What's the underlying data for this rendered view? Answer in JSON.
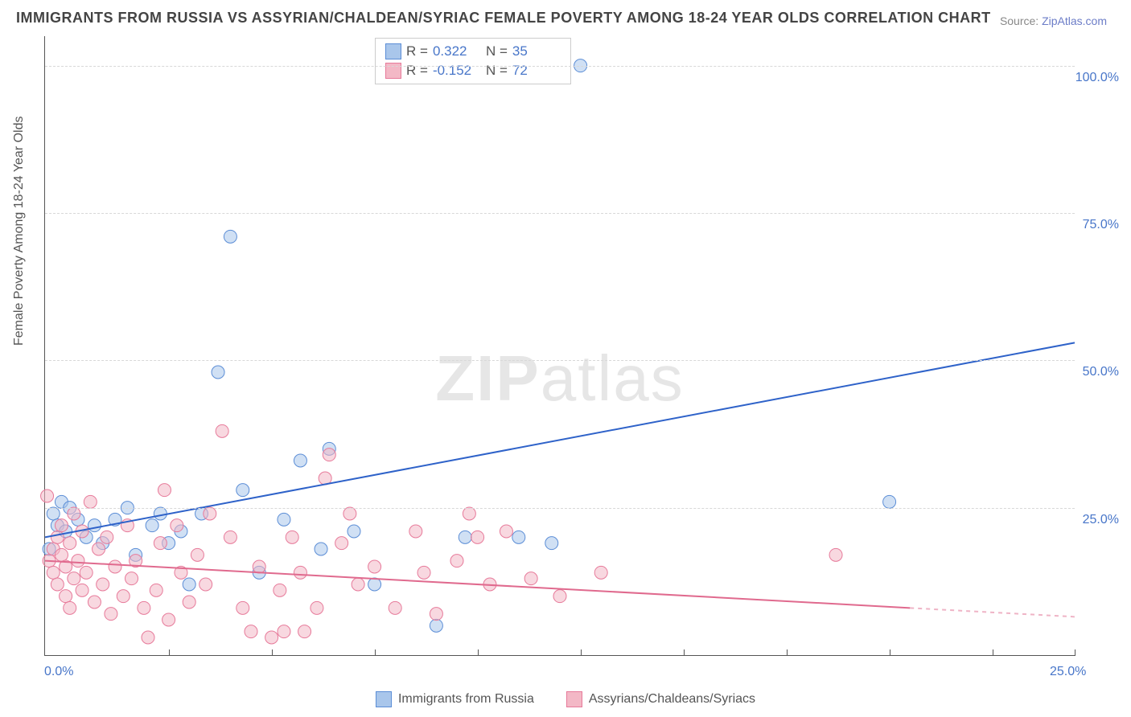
{
  "title": "IMMIGRANTS FROM RUSSIA VS ASSYRIAN/CHALDEAN/SYRIAC FEMALE POVERTY AMONG 18-24 YEAR OLDS CORRELATION CHART",
  "source_label": "Source: ",
  "source_link": "ZipAtlas.com",
  "watermark_a": "ZIP",
  "watermark_b": "atlas",
  "ylabel": "Female Poverty Among 18-24 Year Olds",
  "chart": {
    "type": "scatter-with-regression",
    "xlim": [
      0,
      25
    ],
    "ylim": [
      0,
      105
    ],
    "y_ticks": [
      25,
      50,
      75,
      100
    ],
    "y_tick_labels": [
      "25.0%",
      "50.0%",
      "75.0%",
      "100.0%"
    ],
    "x_origin_label": "0.0%",
    "x_max_label": "25.0%",
    "x_tick_positions": [
      3,
      5.5,
      8,
      10.5,
      13,
      15.5,
      18,
      20.5,
      23,
      25
    ],
    "grid_color": "#d8d8d8",
    "background_color": "#ffffff",
    "axis_color": "#555555",
    "marker_radius": 8,
    "marker_opacity": 0.55,
    "series": [
      {
        "name": "Immigrants from Russia",
        "color_fill": "#a9c6eb",
        "color_stroke": "#5b8dd6",
        "r_label": "R =",
        "r_value": "0.322",
        "n_label": "N =",
        "n_value": "35",
        "regression": {
          "x1": 0,
          "y1": 20,
          "x2": 25,
          "y2": 53,
          "color": "#2e62c9",
          "width": 2
        },
        "points": [
          [
            0.2,
            24
          ],
          [
            0.3,
            22
          ],
          [
            0.4,
            26
          ],
          [
            0.5,
            21
          ],
          [
            0.6,
            25
          ],
          [
            0.8,
            23
          ],
          [
            1.0,
            20
          ],
          [
            1.2,
            22
          ],
          [
            1.4,
            19
          ],
          [
            1.7,
            23
          ],
          [
            2.0,
            25
          ],
          [
            2.2,
            17
          ],
          [
            2.6,
            22
          ],
          [
            2.8,
            24
          ],
          [
            3.0,
            19
          ],
          [
            3.3,
            21
          ],
          [
            3.5,
            12
          ],
          [
            3.8,
            24
          ],
          [
            4.2,
            48
          ],
          [
            4.5,
            71
          ],
          [
            4.8,
            28
          ],
          [
            5.2,
            14
          ],
          [
            5.8,
            23
          ],
          [
            6.2,
            33
          ],
          [
            6.7,
            18
          ],
          [
            6.9,
            35
          ],
          [
            7.5,
            21
          ],
          [
            8.0,
            12
          ],
          [
            9.5,
            5
          ],
          [
            10.2,
            20
          ],
          [
            11.5,
            20
          ],
          [
            12.3,
            19
          ],
          [
            13.0,
            100
          ],
          [
            20.5,
            26
          ],
          [
            0.1,
            18
          ]
        ]
      },
      {
        "name": "Assyrians/Chaldeans/Syriacs",
        "color_fill": "#f3b8c6",
        "color_stroke": "#e77a9a",
        "r_label": "R =",
        "r_value": "-0.152",
        "n_label": "N =",
        "n_value": "72",
        "regression": {
          "x1": 0,
          "y1": 16,
          "x2": 21,
          "y2": 8,
          "extend_x2": 25,
          "extend_y2": 6.5,
          "color": "#e06a8e",
          "width": 2
        },
        "points": [
          [
            0.1,
            16
          ],
          [
            0.2,
            18
          ],
          [
            0.2,
            14
          ],
          [
            0.3,
            20
          ],
          [
            0.3,
            12
          ],
          [
            0.4,
            17
          ],
          [
            0.4,
            22
          ],
          [
            0.5,
            15
          ],
          [
            0.5,
            10
          ],
          [
            0.6,
            19
          ],
          [
            0.6,
            8
          ],
          [
            0.7,
            24
          ],
          [
            0.7,
            13
          ],
          [
            0.8,
            16
          ],
          [
            0.9,
            21
          ],
          [
            0.9,
            11
          ],
          [
            1.0,
            14
          ],
          [
            1.1,
            26
          ],
          [
            1.2,
            9
          ],
          [
            1.3,
            18
          ],
          [
            1.4,
            12
          ],
          [
            1.5,
            20
          ],
          [
            1.6,
            7
          ],
          [
            1.7,
            15
          ],
          [
            1.9,
            10
          ],
          [
            2.0,
            22
          ],
          [
            2.1,
            13
          ],
          [
            2.2,
            16
          ],
          [
            2.4,
            8
          ],
          [
            2.5,
            3
          ],
          [
            2.7,
            11
          ],
          [
            2.8,
            19
          ],
          [
            2.9,
            28
          ],
          [
            3.0,
            6
          ],
          [
            3.2,
            22
          ],
          [
            3.3,
            14
          ],
          [
            3.5,
            9
          ],
          [
            3.7,
            17
          ],
          [
            3.9,
            12
          ],
          [
            4.0,
            24
          ],
          [
            4.3,
            38
          ],
          [
            4.5,
            20
          ],
          [
            4.8,
            8
          ],
          [
            5.0,
            4
          ],
          [
            5.2,
            15
          ],
          [
            5.5,
            3
          ],
          [
            5.7,
            11
          ],
          [
            5.8,
            4
          ],
          [
            6.0,
            20
          ],
          [
            6.2,
            14
          ],
          [
            6.3,
            4
          ],
          [
            6.6,
            8
          ],
          [
            6.8,
            30
          ],
          [
            6.9,
            34
          ],
          [
            7.2,
            19
          ],
          [
            7.4,
            24
          ],
          [
            7.6,
            12
          ],
          [
            8.0,
            15
          ],
          [
            8.5,
            8
          ],
          [
            9.0,
            21
          ],
          [
            9.2,
            14
          ],
          [
            9.5,
            7
          ],
          [
            10.0,
            16
          ],
          [
            10.3,
            24
          ],
          [
            10.5,
            20
          ],
          [
            10.8,
            12
          ],
          [
            11.2,
            21
          ],
          [
            11.8,
            13
          ],
          [
            12.5,
            10
          ],
          [
            13.5,
            14
          ],
          [
            19.2,
            17
          ],
          [
            0.05,
            27
          ]
        ]
      }
    ]
  }
}
